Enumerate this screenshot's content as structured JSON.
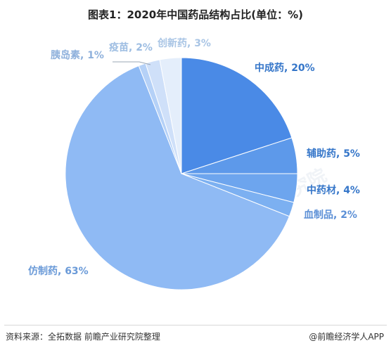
{
  "title": "图表1：2020年中国药品结构占比(单位：%)",
  "chart_data": {
    "type": "pie",
    "title": "图表1：2020年中国药品结构占比(单位：%)",
    "unit": "%",
    "slices": [
      {
        "label": "中成药",
        "value": 20,
        "color": "#4a8ae6",
        "label_color": "#3576c9"
      },
      {
        "label": "辅助药",
        "value": 5,
        "color": "#5d99ea",
        "label_color": "#3576c9"
      },
      {
        "label": "中药材",
        "value": 4,
        "color": "#6da5ee",
        "label_color": "#3576c9"
      },
      {
        "label": "血制品",
        "value": 2,
        "color": "#7cb0f1",
        "label_color": "#5b8fd6"
      },
      {
        "label": "仿制药",
        "value": 63,
        "color": "#8fbaf4",
        "label_color": "#6a9ad8"
      },
      {
        "label": "胰岛素",
        "value": 1,
        "color": "#b5d1f7",
        "label_color": "#8fb1dc"
      },
      {
        "label": "疫苗",
        "value": 2,
        "color": "#cfe0f9",
        "label_color": "#9dbde2"
      },
      {
        "label": "创新药",
        "value": 3,
        "color": "#e4eefb",
        "label_color": "#a9c5e5"
      }
    ],
    "slice_labels": [
      "中成药, 20%",
      "辅助药, 5%",
      "中药材, 4%",
      "血制品, 2%",
      "仿制药, 63%",
      "胰岛素, 1%",
      "疫苗, 2%",
      "创新药, 3%"
    ]
  },
  "watermark_text": "前瞻产业研究院",
  "footer": {
    "source": "资料来源：全拓数据 前瞻产业研究院整理",
    "brand": "@前瞻经济学人APP"
  }
}
